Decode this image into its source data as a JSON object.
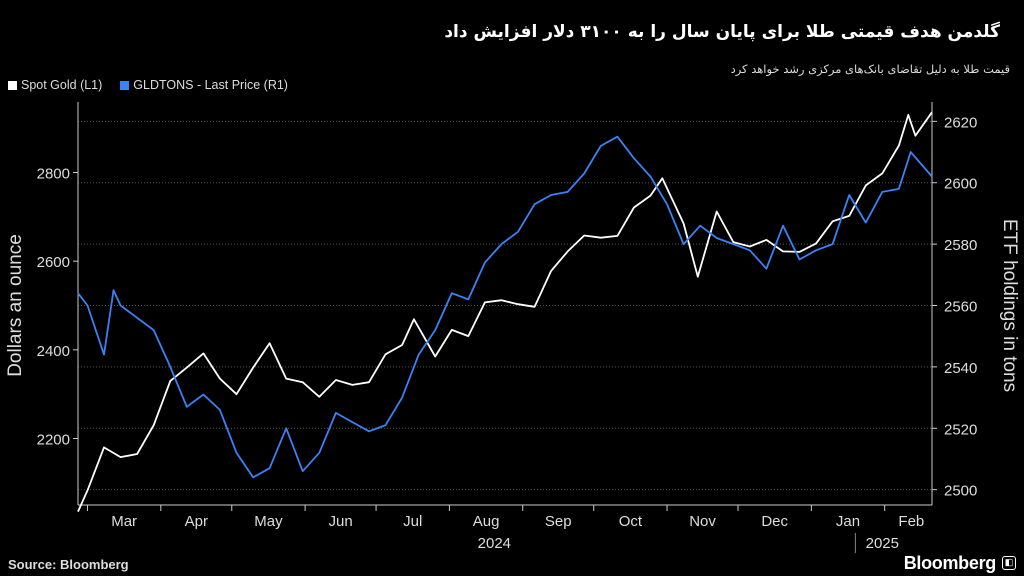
{
  "header": {
    "title": "گلدمن هدف قیمتی طلا برای پایان سال را به ۳۱۰۰ دلار افزایش داد",
    "subtitle": "قیمت طلا به دلیل تقاضای بانک‌های مرکزی رشد خواهد کرد"
  },
  "legend": {
    "items": [
      {
        "label": "Spot Gold (L1)",
        "color": "#ffffff"
      },
      {
        "label": "GLDTONS - Last Price (R1)",
        "color": "#3b82f6"
      }
    ]
  },
  "footer": {
    "source": "Source: Bloomberg",
    "brand": "Bloomberg",
    "brand_mark": "◧"
  },
  "chart_data": {
    "type": "line",
    "title": "",
    "x_labels": [
      "Mar",
      "Apr",
      "May",
      "Jun",
      "Jul",
      "Aug",
      "Sep",
      "Oct",
      "Nov",
      "Dec",
      "Jan",
      "Feb"
    ],
    "year_labels": [
      "2024",
      "2025"
    ],
    "x_range": [
      "2024-02-26",
      "2025-02-21"
    ],
    "left_axis": {
      "label": "Dollars an ounce",
      "ticks": [
        "2200",
        "2400",
        "2600",
        "2800"
      ],
      "range": [
        2050,
        2950
      ]
    },
    "right_axis": {
      "label": "ETF holdings in tons",
      "ticks": [
        "2500",
        "2520",
        "2540",
        "2560",
        "2580",
        "2600",
        "2620"
      ],
      "range": [
        2495,
        2625
      ]
    },
    "grid": "horizontal dotted",
    "legend_position": "top-left",
    "series": [
      {
        "name": "Spot Gold (L1)",
        "axis": "left",
        "color": "#ffffff",
        "points": [
          [
            "2024-02-26",
            2035
          ],
          [
            "2024-03-01",
            2083
          ],
          [
            "2024-03-08",
            2180
          ],
          [
            "2024-03-15",
            2158
          ],
          [
            "2024-03-22",
            2165
          ],
          [
            "2024-03-29",
            2230
          ],
          [
            "2024-04-05",
            2330
          ],
          [
            "2024-04-12",
            2360
          ],
          [
            "2024-04-19",
            2392
          ],
          [
            "2024-04-26",
            2335
          ],
          [
            "2024-05-03",
            2300
          ],
          [
            "2024-05-10",
            2360
          ],
          [
            "2024-05-17",
            2415
          ],
          [
            "2024-05-24",
            2335
          ],
          [
            "2024-05-31",
            2327
          ],
          [
            "2024-06-07",
            2294
          ],
          [
            "2024-06-14",
            2332
          ],
          [
            "2024-06-21",
            2321
          ],
          [
            "2024-06-28",
            2327
          ],
          [
            "2024-07-05",
            2390
          ],
          [
            "2024-07-12",
            2411
          ],
          [
            "2024-07-17",
            2469
          ],
          [
            "2024-07-26",
            2385
          ],
          [
            "2024-08-02",
            2445
          ],
          [
            "2024-08-09",
            2431
          ],
          [
            "2024-08-16",
            2507
          ],
          [
            "2024-08-23",
            2512
          ],
          [
            "2024-08-30",
            2503
          ],
          [
            "2024-09-06",
            2497
          ],
          [
            "2024-09-13",
            2578
          ],
          [
            "2024-09-20",
            2622
          ],
          [
            "2024-09-27",
            2658
          ],
          [
            "2024-10-04",
            2653
          ],
          [
            "2024-10-11",
            2657
          ],
          [
            "2024-10-18",
            2721
          ],
          [
            "2024-10-25",
            2748
          ],
          [
            "2024-10-30",
            2787
          ],
          [
            "2024-11-08",
            2685
          ],
          [
            "2024-11-14",
            2565
          ],
          [
            "2024-11-22",
            2712
          ],
          [
            "2024-11-29",
            2643
          ],
          [
            "2024-12-06",
            2633
          ],
          [
            "2024-12-13",
            2648
          ],
          [
            "2024-12-20",
            2622
          ],
          [
            "2024-12-27",
            2621
          ],
          [
            "2025-01-03",
            2640
          ],
          [
            "2025-01-10",
            2690
          ],
          [
            "2025-01-17",
            2702
          ],
          [
            "2025-01-24",
            2771
          ],
          [
            "2025-01-31",
            2798
          ],
          [
            "2025-02-07",
            2861
          ],
          [
            "2025-02-11",
            2930
          ],
          [
            "2025-02-14",
            2883
          ],
          [
            "2025-02-21",
            2936
          ]
        ]
      },
      {
        "name": "GLDTONS - Last Price (R1)",
        "axis": "right",
        "color": "#3b82f6",
        "points": [
          [
            "2024-02-26",
            2564
          ],
          [
            "2024-03-01",
            2560
          ],
          [
            "2024-03-08",
            2544
          ],
          [
            "2024-03-12",
            2565
          ],
          [
            "2024-03-15",
            2560
          ],
          [
            "2024-03-22",
            2556
          ],
          [
            "2024-03-29",
            2552
          ],
          [
            "2024-04-05",
            2540
          ],
          [
            "2024-04-12",
            2527
          ],
          [
            "2024-04-19",
            2531
          ],
          [
            "2024-04-26",
            2526
          ],
          [
            "2024-05-03",
            2512
          ],
          [
            "2024-05-10",
            2504
          ],
          [
            "2024-05-17",
            2507
          ],
          [
            "2024-05-24",
            2520
          ],
          [
            "2024-05-31",
            2506
          ],
          [
            "2024-06-07",
            2512
          ],
          [
            "2024-06-14",
            2525
          ],
          [
            "2024-06-21",
            2522
          ],
          [
            "2024-06-28",
            2519
          ],
          [
            "2024-07-05",
            2521
          ],
          [
            "2024-07-12",
            2530
          ],
          [
            "2024-07-19",
            2544
          ],
          [
            "2024-07-26",
            2552
          ],
          [
            "2024-08-02",
            2564
          ],
          [
            "2024-08-09",
            2562
          ],
          [
            "2024-08-16",
            2574
          ],
          [
            "2024-08-23",
            2580
          ],
          [
            "2024-08-30",
            2584
          ],
          [
            "2024-09-06",
            2593
          ],
          [
            "2024-09-13",
            2596
          ],
          [
            "2024-09-20",
            2597
          ],
          [
            "2024-09-27",
            2603
          ],
          [
            "2024-10-04",
            2612
          ],
          [
            "2024-10-11",
            2615
          ],
          [
            "2024-10-18",
            2608
          ],
          [
            "2024-10-25",
            2602
          ],
          [
            "2024-11-01",
            2593
          ],
          [
            "2024-11-08",
            2580
          ],
          [
            "2024-11-15",
            2586
          ],
          [
            "2024-11-22",
            2582
          ],
          [
            "2024-11-29",
            2580
          ],
          [
            "2024-12-06",
            2578
          ],
          [
            "2024-12-13",
            2572
          ],
          [
            "2024-12-20",
            2586
          ],
          [
            "2024-12-27",
            2575
          ],
          [
            "2025-01-03",
            2578
          ],
          [
            "2025-01-10",
            2580
          ],
          [
            "2025-01-17",
            2596
          ],
          [
            "2025-01-24",
            2587
          ],
          [
            "2025-01-31",
            2597
          ],
          [
            "2025-02-07",
            2598
          ],
          [
            "2025-02-12",
            2610
          ],
          [
            "2025-02-21",
            2602
          ]
        ]
      }
    ]
  }
}
